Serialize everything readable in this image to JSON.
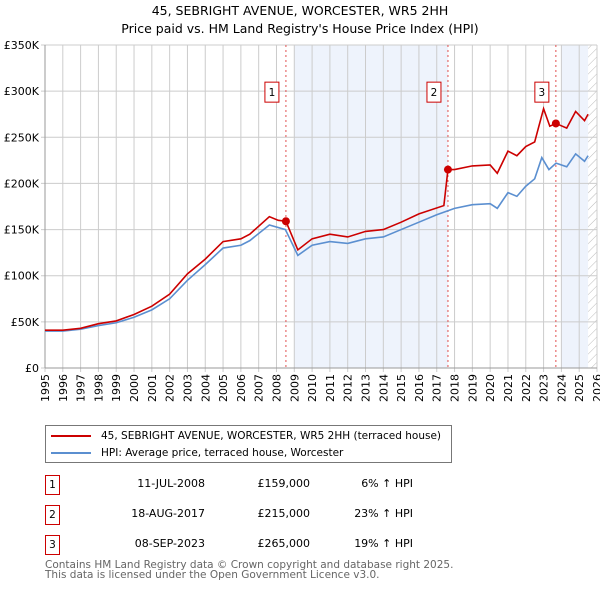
{
  "chart_data": {
    "type": "line",
    "title": "45, SEBRIGHT AVENUE, WORCESTER, WR5 2HH",
    "subtitle": "Price paid vs. HM Land Registry's House Price Index (HPI)",
    "xlabel": "",
    "ylabel": "",
    "xlim": [
      1995,
      2026
    ],
    "ylim": [
      0,
      350000
    ],
    "x_ticks": [
      "1995",
      "1996",
      "1997",
      "1998",
      "1999",
      "2000",
      "2001",
      "2002",
      "2003",
      "2004",
      "2005",
      "2006",
      "2007",
      "2008",
      "2009",
      "2010",
      "2011",
      "2012",
      "2013",
      "2014",
      "2015",
      "2016",
      "2017",
      "2018",
      "2019",
      "2020",
      "2021",
      "2022",
      "2023",
      "2024",
      "2025",
      "2026"
    ],
    "y_ticks": [
      {
        "v": 0,
        "label": "£0"
      },
      {
        "v": 50000,
        "label": "£50K"
      },
      {
        "v": 100000,
        "label": "£100K"
      },
      {
        "v": 150000,
        "label": "£150K"
      },
      {
        "v": 200000,
        "label": "£200K"
      },
      {
        "v": 250000,
        "label": "£250K"
      },
      {
        "v": 300000,
        "label": "£300K"
      },
      {
        "v": 350000,
        "label": "£350K"
      }
    ],
    "grid": true,
    "series": [
      {
        "name": "45, SEBRIGHT AVENUE, WORCESTER, WR5 2HH (terraced house)",
        "color": "#cc0000",
        "x": [
          1995,
          1996,
          1997,
          1998,
          1999,
          2000,
          2001,
          2002,
          2003,
          2004,
          2005,
          2006,
          2006.5,
          2007.6,
          2008.1,
          2008.53,
          2009.2,
          2010,
          2011,
          2012,
          2013,
          2014,
          2015,
          2016,
          2017.4,
          2017.63,
          2018,
          2019,
          2020,
          2020.4,
          2021,
          2021.5,
          2022,
          2022.5,
          2023.0,
          2023.35,
          2023.69,
          2024.3,
          2024.8,
          2025.3,
          2025.5
        ],
        "y": [
          41000,
          41000,
          43000,
          48000,
          51000,
          58000,
          67000,
          80000,
          102000,
          118000,
          137000,
          140000,
          145000,
          164000,
          160000,
          159000,
          128000,
          140000,
          145000,
          142000,
          148000,
          150000,
          158000,
          167000,
          176000,
          215000,
          215000,
          219000,
          220000,
          211000,
          235000,
          230000,
          240000,
          245000,
          281000,
          262000,
          265000,
          260000,
          278000,
          268000,
          275000
        ]
      },
      {
        "name": "HPI: Average price, terraced house, Worcester",
        "color": "#5b8fd0",
        "x": [
          1995,
          1996,
          1997,
          1998,
          1999,
          2000,
          2001,
          2002,
          2003,
          2004,
          2005,
          2006,
          2006.5,
          2007.6,
          2008.5,
          2009.2,
          2010,
          2011,
          2012,
          2013,
          2014,
          2015,
          2016,
          2017,
          2018,
          2019,
          2020,
          2020.4,
          2021,
          2021.5,
          2022,
          2022.5,
          2022.9,
          2023.3,
          2023.7,
          2024.3,
          2024.8,
          2025.3,
          2025.5
        ],
        "y": [
          40000,
          40000,
          42000,
          46000,
          49000,
          55000,
          63000,
          75000,
          95000,
          112000,
          130000,
          133000,
          138000,
          155000,
          150000,
          122000,
          133000,
          137000,
          135000,
          140000,
          142000,
          150000,
          158000,
          166000,
          173000,
          177000,
          178000,
          173000,
          190000,
          186000,
          197000,
          205000,
          228000,
          215000,
          222000,
          218000,
          232000,
          224000,
          230000
        ]
      }
    ],
    "sales": [
      {
        "id": "1",
        "x": 2008.53,
        "y": 159000,
        "date": "11-JUL-2008",
        "price": "£159,000",
        "hpi": "6% ↑ HPI"
      },
      {
        "id": "2",
        "x": 2017.63,
        "y": 215000,
        "date": "18-AUG-2017",
        "price": "£215,000",
        "hpi": "23% ↑ HPI"
      },
      {
        "id": "3",
        "x": 2023.69,
        "y": 265000,
        "date": "08-SEP-2023",
        "price": "£265,000",
        "hpi": "19% ↑ HPI"
      }
    ],
    "shaded": [
      [
        2009.0,
        2017.63
      ],
      [
        2024.0,
        2025.5
      ]
    ],
    "hatched": [
      2025.5,
      2026
    ],
    "legend_position": "bottom"
  },
  "footer": [
    "Contains HM Land Registry data © Crown copyright and database right 2025.",
    "This data is licensed under the Open Government Licence v3.0."
  ]
}
